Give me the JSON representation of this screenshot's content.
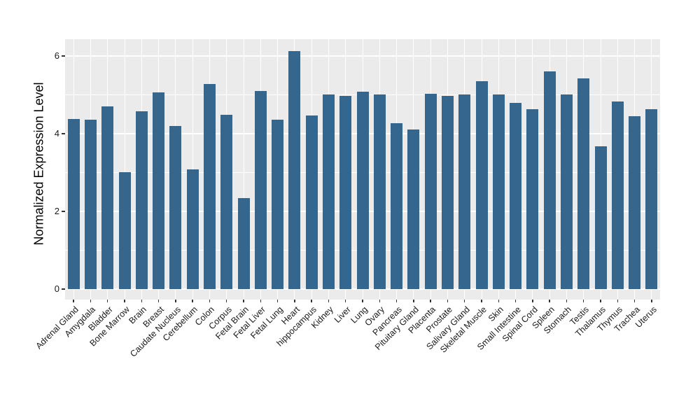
{
  "figure": {
    "background": "#FFFFFF",
    "panel_background": "#EBEBEB",
    "grid_color": "#FFFFFF",
    "bar_color": "#35678E",
    "axis_text_color": "#1A1A1A",
    "axis_title_color": "#000000",
    "tick_mark_color": "#333333"
  },
  "chart_data": {
    "type": "bar",
    "title": "",
    "xlabel": "",
    "ylabel": "Normalized Expression Level",
    "legend_position": "none",
    "grid": true,
    "x_tick_rotation": 45,
    "ylim": [
      -0.27,
      6.43
    ],
    "yticks": [
      0,
      2,
      4,
      6
    ],
    "yminor": [
      1,
      3,
      5
    ],
    "bar_width_fraction": 0.7,
    "categories": [
      "Adrenal Gland",
      "Amygdala",
      "Bladder",
      "Bone Marrow",
      "Brain",
      "Breast",
      "Caudate Nucleus",
      "Cerebellum",
      "Colon",
      "Corpus",
      "Fetal Brain",
      "Fetal Liver",
      "Fetal Lung",
      "Heart",
      "hippocampus",
      "Kidney",
      "Liver",
      "Lung",
      "Ovary",
      "Pancreas",
      "Pituitary Gland",
      "Placenta",
      "Prostate",
      "Salivary Gland",
      "Skeletal Muscle",
      "Skin",
      "Small Intestine",
      "Spinal Cord",
      "Spleen",
      "Stomach",
      "Testis",
      "Thalamus",
      "Thymus",
      "Trachea",
      "Uterus"
    ],
    "values": [
      4.38,
      4.35,
      4.7,
      3.01,
      4.58,
      5.06,
      4.2,
      3.08,
      5.27,
      4.48,
      2.35,
      5.1,
      4.35,
      6.12,
      4.47,
      5.0,
      4.98,
      5.08,
      5.01,
      4.26,
      4.1,
      5.03,
      4.98,
      5.0,
      5.35,
      5.01,
      4.8,
      4.62,
      5.61,
      5.01,
      5.43,
      3.68,
      4.82,
      4.45,
      4.62
    ]
  }
}
